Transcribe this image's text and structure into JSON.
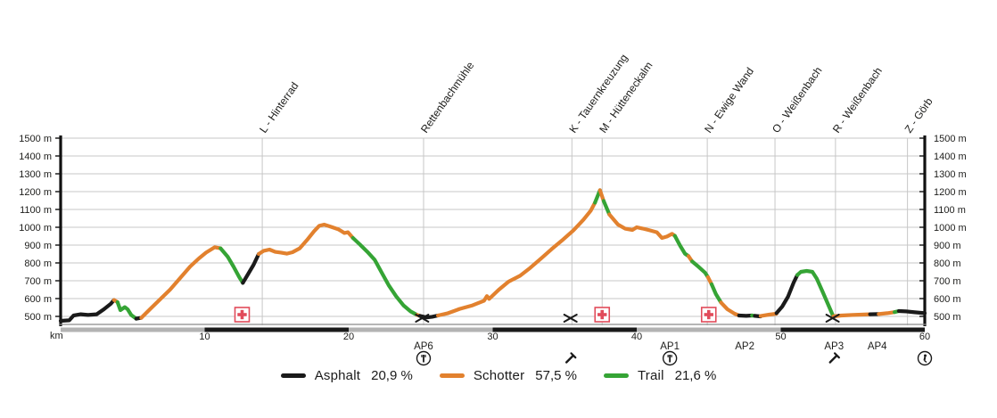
{
  "chart_data": {
    "type": "line",
    "title": "",
    "xlabel": "km",
    "x_range": [
      0,
      60
    ],
    "x_ticks": [
      10,
      20,
      30,
      40,
      50,
      60
    ],
    "x_unit_label": "km",
    "y_unit": "m",
    "y_ticks": [
      500,
      600,
      700,
      800,
      900,
      1000,
      1100,
      1200,
      1300,
      1400,
      1500
    ],
    "y_range": [
      450,
      1500
    ],
    "grid": true,
    "legend_position": "bottom",
    "colors": {
      "asphalt": "#1a1a1a",
      "schotter": "#e2812e",
      "trail": "#35a435",
      "grid": "#c7c7c7",
      "axis": "#111111",
      "first_aid_red": "#e14b5a",
      "distance_bar_light": "#b3b3b3",
      "distance_bar_dark": "#1a1a1a"
    },
    "surfaces": [
      {
        "key": "asphalt",
        "name": "Asphalt",
        "share": "20,9 %",
        "color": "#1a1a1a"
      },
      {
        "key": "schotter",
        "name": "Schotter",
        "share": "57,5 %",
        "color": "#e2812e"
      },
      {
        "key": "trail",
        "name": "Trail",
        "share": "21,6 %",
        "color": "#35a435"
      }
    ],
    "waypoints": [
      {
        "label": "L - Hinterrad",
        "km": 14.0
      },
      {
        "label": "Rettenbachmühle",
        "km": 25.2
      },
      {
        "label": "K - Tauernkreuzung",
        "km": 35.5
      },
      {
        "label": "M - Hütteneckalm",
        "km": 37.6
      },
      {
        "label": "N - Ewige Wand",
        "km": 44.9
      },
      {
        "label": "O - Weißenbach",
        "km": 49.6
      },
      {
        "label": "R - Weißenbach",
        "km": 53.8
      },
      {
        "label": "Z - Görb",
        "km": 58.8
      }
    ],
    "checkpoints": [
      {
        "label": "AP6",
        "km": 25.2
      },
      {
        "label": "AP1",
        "km": 42.3
      },
      {
        "label": "AP2",
        "km": 47.5
      },
      {
        "label": "AP3",
        "km": 53.7
      },
      {
        "label": "AP4",
        "km": 56.7
      }
    ],
    "below_axis_icons": [
      {
        "icon": "rest-stop",
        "km": 25.2
      },
      {
        "icon": "repair-service",
        "km": 35.4
      },
      {
        "icon": "rest-stop",
        "km": 42.3
      },
      {
        "icon": "repair-service",
        "km": 53.7
      },
      {
        "icon": "hiker-finish",
        "km": 60.0
      }
    ],
    "markers": {
      "first_aid_km": [
        12.6,
        37.6,
        45.0
      ],
      "crossed_tools_km": [
        25.1,
        35.4,
        53.6
      ]
    },
    "profile_segments": [
      {
        "surface": "asphalt",
        "points": [
          [
            0,
            475
          ],
          [
            0.6,
            478
          ],
          [
            0.9,
            505
          ],
          [
            1.4,
            512
          ],
          [
            1.9,
            508
          ],
          [
            2.5,
            512
          ],
          [
            3.0,
            540
          ],
          [
            3.5,
            572
          ],
          [
            3.7,
            592
          ]
        ]
      },
      {
        "surface": "schotter",
        "points": [
          [
            3.7,
            592
          ],
          [
            3.95,
            580
          ]
        ]
      },
      {
        "surface": "trail",
        "points": [
          [
            3.95,
            580
          ],
          [
            4.15,
            535
          ],
          [
            4.45,
            552
          ],
          [
            4.65,
            540
          ],
          [
            4.9,
            508
          ],
          [
            5.25,
            487
          ]
        ]
      },
      {
        "surface": "asphalt",
        "points": [
          [
            5.25,
            487
          ],
          [
            5.6,
            492
          ]
        ]
      },
      {
        "surface": "schotter",
        "points": [
          [
            5.6,
            492
          ],
          [
            6.2,
            540
          ],
          [
            6.9,
            595
          ],
          [
            7.6,
            650
          ],
          [
            8.3,
            715
          ],
          [
            9.0,
            780
          ],
          [
            9.6,
            825
          ],
          [
            10.1,
            858
          ],
          [
            10.7,
            888
          ],
          [
            11.1,
            882
          ]
        ]
      },
      {
        "surface": "trail",
        "points": [
          [
            11.1,
            882
          ],
          [
            11.6,
            835
          ],
          [
            12.0,
            780
          ],
          [
            12.4,
            720
          ],
          [
            12.65,
            688
          ]
        ]
      },
      {
        "surface": "asphalt",
        "points": [
          [
            12.65,
            688
          ],
          [
            13.0,
            735
          ],
          [
            13.4,
            790
          ],
          [
            13.75,
            850
          ]
        ]
      },
      {
        "surface": "schotter",
        "points": [
          [
            13.75,
            850
          ],
          [
            14.1,
            868
          ],
          [
            14.5,
            875
          ],
          [
            14.9,
            862
          ],
          [
            15.3,
            858
          ],
          [
            15.7,
            852
          ],
          [
            16.1,
            860
          ],
          [
            16.6,
            882
          ],
          [
            17.1,
            928
          ],
          [
            17.6,
            978
          ],
          [
            17.95,
            1008
          ],
          [
            18.3,
            1015
          ],
          [
            18.8,
            1002
          ],
          [
            19.3,
            988
          ],
          [
            19.7,
            968
          ],
          [
            19.95,
            972
          ],
          [
            20.3,
            940
          ]
        ]
      },
      {
        "surface": "trail",
        "points": [
          [
            20.3,
            940
          ],
          [
            20.8,
            902
          ],
          [
            21.3,
            862
          ],
          [
            21.8,
            818
          ],
          [
            22.3,
            745
          ],
          [
            22.8,
            672
          ],
          [
            23.3,
            612
          ],
          [
            23.8,
            562
          ],
          [
            24.3,
            528
          ],
          [
            24.75,
            508
          ]
        ]
      },
      {
        "surface": "schotter",
        "points": [
          [
            24.75,
            508
          ],
          [
            24.95,
            503
          ]
        ]
      },
      {
        "surface": "asphalt",
        "points": [
          [
            24.95,
            503
          ],
          [
            25.4,
            494
          ],
          [
            25.8,
            498
          ],
          [
            26.2,
            505
          ]
        ]
      },
      {
        "surface": "schotter",
        "points": [
          [
            26.2,
            505
          ],
          [
            26.9,
            518
          ],
          [
            27.7,
            542
          ],
          [
            28.6,
            562
          ],
          [
            29.4,
            588
          ],
          [
            29.6,
            614
          ],
          [
            29.75,
            598
          ],
          [
            30.4,
            648
          ],
          [
            31.1,
            695
          ],
          [
            31.9,
            728
          ],
          [
            32.6,
            772
          ],
          [
            33.4,
            828
          ],
          [
            34.1,
            878
          ],
          [
            34.9,
            932
          ],
          [
            35.6,
            982
          ],
          [
            36.3,
            1042
          ],
          [
            36.8,
            1092
          ],
          [
            37.1,
            1138
          ]
        ]
      },
      {
        "surface": "trail",
        "points": [
          [
            37.1,
            1138
          ],
          [
            37.45,
            1208
          ]
        ]
      },
      {
        "surface": "schotter",
        "points": [
          [
            37.45,
            1208
          ],
          [
            37.7,
            1148
          ]
        ]
      },
      {
        "surface": "trail",
        "points": [
          [
            37.7,
            1148
          ],
          [
            38.1,
            1072
          ]
        ]
      },
      {
        "surface": "schotter",
        "points": [
          [
            38.1,
            1072
          ],
          [
            38.7,
            1015
          ],
          [
            39.2,
            992
          ],
          [
            39.7,
            985
          ],
          [
            40.0,
            1000
          ],
          [
            40.4,
            993
          ],
          [
            40.9,
            983
          ],
          [
            41.4,
            972
          ],
          [
            41.75,
            940
          ],
          [
            42.1,
            948
          ],
          [
            42.45,
            963
          ],
          [
            42.65,
            952
          ]
        ]
      },
      {
        "surface": "trail",
        "points": [
          [
            42.65,
            952
          ],
          [
            43.0,
            898
          ],
          [
            43.35,
            852
          ],
          [
            43.6,
            838
          ]
        ]
      },
      {
        "surface": "schotter",
        "points": [
          [
            43.6,
            838
          ],
          [
            43.85,
            808
          ]
        ]
      },
      {
        "surface": "trail",
        "points": [
          [
            43.85,
            808
          ],
          [
            44.3,
            778
          ],
          [
            44.75,
            745
          ],
          [
            44.95,
            720
          ]
        ]
      },
      {
        "surface": "schotter",
        "points": [
          [
            44.95,
            720
          ],
          [
            45.2,
            680
          ]
        ]
      },
      {
        "surface": "trail",
        "points": [
          [
            45.2,
            680
          ],
          [
            45.5,
            625
          ],
          [
            45.85,
            578
          ]
        ]
      },
      {
        "surface": "schotter",
        "points": [
          [
            45.85,
            578
          ],
          [
            46.3,
            540
          ],
          [
            46.8,
            515
          ],
          [
            47.1,
            505
          ]
        ]
      },
      {
        "surface": "asphalt",
        "points": [
          [
            47.1,
            505
          ],
          [
            47.6,
            503
          ],
          [
            48.0,
            505
          ]
        ]
      },
      {
        "surface": "trail",
        "points": [
          [
            48.0,
            505
          ],
          [
            48.2,
            503
          ]
        ]
      },
      {
        "surface": "asphalt",
        "points": [
          [
            48.2,
            503
          ],
          [
            48.6,
            500
          ]
        ]
      },
      {
        "surface": "schotter",
        "points": [
          [
            48.6,
            502
          ],
          [
            49.2,
            510
          ],
          [
            49.7,
            515
          ]
        ]
      },
      {
        "surface": "asphalt",
        "points": [
          [
            49.7,
            518
          ],
          [
            50.1,
            555
          ],
          [
            50.5,
            610
          ],
          [
            50.9,
            690
          ],
          [
            51.15,
            732
          ]
        ]
      },
      {
        "surface": "trail",
        "points": [
          [
            51.15,
            732
          ],
          [
            51.4,
            750
          ],
          [
            51.8,
            755
          ],
          [
            52.2,
            750
          ],
          [
            52.5,
            712
          ],
          [
            52.9,
            640
          ],
          [
            53.3,
            565
          ],
          [
            53.65,
            500
          ]
        ]
      },
      {
        "surface": "schotter",
        "points": [
          [
            53.65,
            500
          ],
          [
            54.2,
            505
          ],
          [
            55.0,
            508
          ],
          [
            56.2,
            512
          ]
        ]
      },
      {
        "surface": "asphalt",
        "points": [
          [
            56.2,
            512
          ],
          [
            56.8,
            513
          ]
        ]
      },
      {
        "surface": "schotter",
        "points": [
          [
            56.8,
            513
          ],
          [
            57.4,
            518
          ],
          [
            57.9,
            524
          ]
        ]
      },
      {
        "surface": "trail",
        "points": [
          [
            57.9,
            524
          ],
          [
            58.2,
            530
          ]
        ]
      },
      {
        "surface": "asphalt",
        "points": [
          [
            58.2,
            530
          ],
          [
            58.7,
            528
          ],
          [
            59.3,
            523
          ],
          [
            60,
            518
          ]
        ]
      }
    ]
  }
}
